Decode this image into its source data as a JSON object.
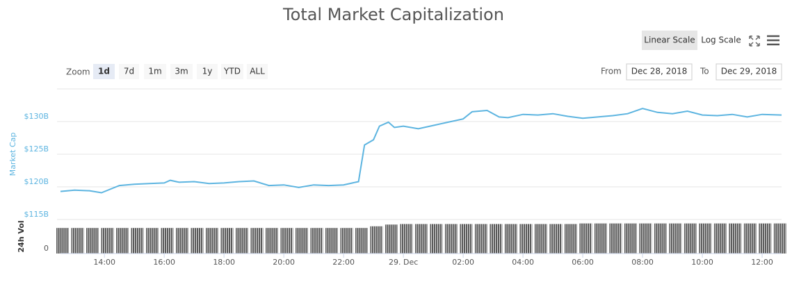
{
  "controls": {
    "scales": [
      "Linear Scale",
      "Log Scale"
    ],
    "zoom_label": "Zoom",
    "zoom": [
      "1d",
      "7d",
      "1m",
      "3m",
      "1y",
      "YTD",
      "ALL"
    ],
    "from_label": "From",
    "from": "Dec 28, 2018",
    "to_label": "To",
    "to": "Dec 29, 2018"
  },
  "chart_data": [
    {
      "type": "line",
      "title": "Total Market Capitalization",
      "ylabel": "Market Cap",
      "color": "#5cb4e0",
      "x": [
        12.53,
        13,
        13.5,
        13.9,
        14.5,
        15,
        15.5,
        16,
        16.2,
        16.5,
        17,
        17.5,
        18,
        18.5,
        19,
        19.5,
        20,
        20.5,
        21,
        21.5,
        22,
        22.5,
        22.7,
        23,
        23.2,
        23.5,
        23.7,
        24,
        24.5,
        25,
        25.5,
        26,
        26.3,
        26.8,
        27.2,
        27.5,
        28,
        28.5,
        29,
        29.5,
        30,
        30.5,
        31,
        31.5,
        32,
        32.5,
        33,
        33.5,
        34,
        34.5,
        35,
        35.5,
        36,
        36.65
      ],
      "values": [
        119.3,
        119.5,
        119.4,
        119.1,
        120.2,
        120.4,
        120.5,
        120.6,
        121.0,
        120.7,
        120.8,
        120.5,
        120.6,
        120.8,
        120.9,
        120.2,
        120.3,
        119.9,
        120.3,
        120.2,
        120.3,
        120.8,
        126.4,
        127.2,
        129.3,
        129.9,
        129.1,
        129.3,
        128.9,
        129.4,
        129.9,
        130.4,
        131.5,
        131.7,
        130.7,
        130.6,
        131.1,
        131.0,
        131.2,
        130.8,
        130.5,
        130.7,
        130.9,
        131.2,
        132.0,
        131.4,
        131.2,
        131.6,
        131.0,
        130.9,
        131.1,
        130.7,
        131.1,
        131.0
      ],
      "xlim": [
        12.53,
        36.65
      ],
      "ylim": [
        115,
        135
      ],
      "yticks": [
        {
          "value": 115,
          "label": "$115B"
        },
        {
          "value": 120,
          "label": "$120B"
        },
        {
          "value": 125,
          "label": "$125B"
        },
        {
          "value": 130,
          "label": "$130B"
        }
      ],
      "grid": true
    },
    {
      "type": "bar",
      "ylabel": "24h Vol",
      "color": "#5a5a5a",
      "x": [
        12.6,
        13.1,
        13.6,
        14.1,
        14.6,
        15.1,
        15.6,
        16.1,
        16.6,
        17.1,
        17.6,
        18.1,
        18.6,
        19.1,
        19.6,
        20.1,
        20.6,
        21.1,
        21.6,
        22.1,
        22.6,
        23.1,
        23.6,
        24.1,
        24.6,
        25.1,
        25.6,
        26.1,
        26.6,
        27.1,
        27.6,
        28.1,
        28.6,
        29.1,
        29.6,
        30.1,
        30.6,
        31.1,
        31.6,
        32.1,
        32.6,
        33.1,
        33.6,
        34.1,
        34.6,
        35.1,
        35.6,
        36.1,
        36.6
      ],
      "values": [
        45,
        45,
        45,
        45,
        45,
        45,
        45,
        45,
        45,
        45,
        45,
        45,
        45,
        45,
        45,
        45,
        45,
        45,
        45,
        45,
        45,
        48,
        51,
        52,
        52,
        52,
        52,
        52,
        52,
        52,
        52,
        52,
        52,
        52,
        52,
        53,
        53,
        53,
        53,
        53,
        53,
        53,
        53,
        53,
        53,
        53,
        53,
        53,
        53
      ],
      "xlim": [
        12.53,
        36.65
      ],
      "ylim": [
        0,
        60
      ],
      "yticks": [
        0
      ],
      "xticks": [
        {
          "value": 14,
          "label": "14:00"
        },
        {
          "value": 16,
          "label": "16:00"
        },
        {
          "value": 18,
          "label": "18:00"
        },
        {
          "value": 20,
          "label": "20:00"
        },
        {
          "value": 22,
          "label": "22:00"
        },
        {
          "value": 24,
          "label": "29. Dec"
        },
        {
          "value": 26,
          "label": "02:00"
        },
        {
          "value": 28,
          "label": "04:00"
        },
        {
          "value": 30,
          "label": "06:00"
        },
        {
          "value": 32,
          "label": "08:00"
        },
        {
          "value": 34,
          "label": "10:00"
        },
        {
          "value": 36,
          "label": "12:00"
        }
      ]
    }
  ]
}
